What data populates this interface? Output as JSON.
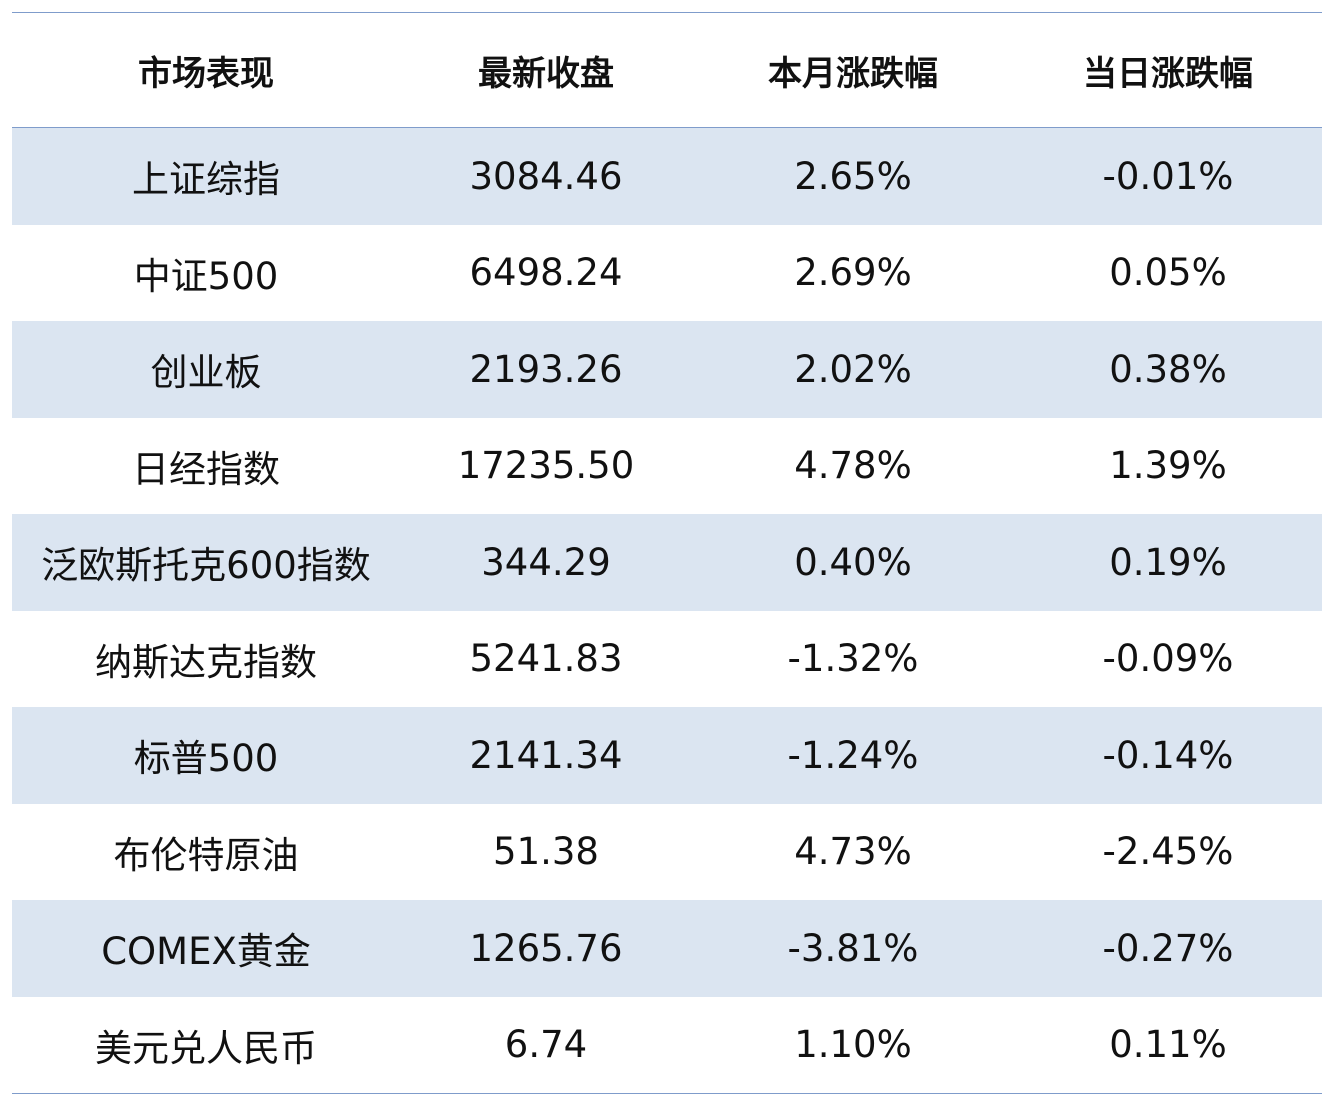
{
  "table": {
    "headers": [
      "市场表现",
      "最新收盘",
      "本月涨跌幅",
      "当日涨跌幅"
    ],
    "rows": [
      [
        "上证综指",
        "3084.46",
        "2.65%",
        "-0.01%"
      ],
      [
        "中证500",
        "6498.24",
        "2.69%",
        "0.05%"
      ],
      [
        "创业板",
        "2193.26",
        "2.02%",
        "0.38%"
      ],
      [
        "日经指数",
        "17235.50",
        "4.78%",
        "1.39%"
      ],
      [
        "泛欧斯托克600指数",
        "344.29",
        "0.40%",
        "0.19%"
      ],
      [
        "纳斯达克指数",
        "5241.83",
        "-1.32%",
        "-0.09%"
      ],
      [
        "标普500",
        "2141.34",
        "-1.24%",
        "-0.14%"
      ],
      [
        "布伦特原油",
        "51.38",
        "4.73%",
        "-2.45%"
      ],
      [
        "COMEX黄金",
        "1265.76",
        "-3.81%",
        "-0.27%"
      ],
      [
        "美元兑人民币",
        "6.74",
        "1.10%",
        "0.11%"
      ]
    ]
  },
  "colors": {
    "stripe": "#dbe5f1",
    "rule": "#7f9ccb"
  }
}
